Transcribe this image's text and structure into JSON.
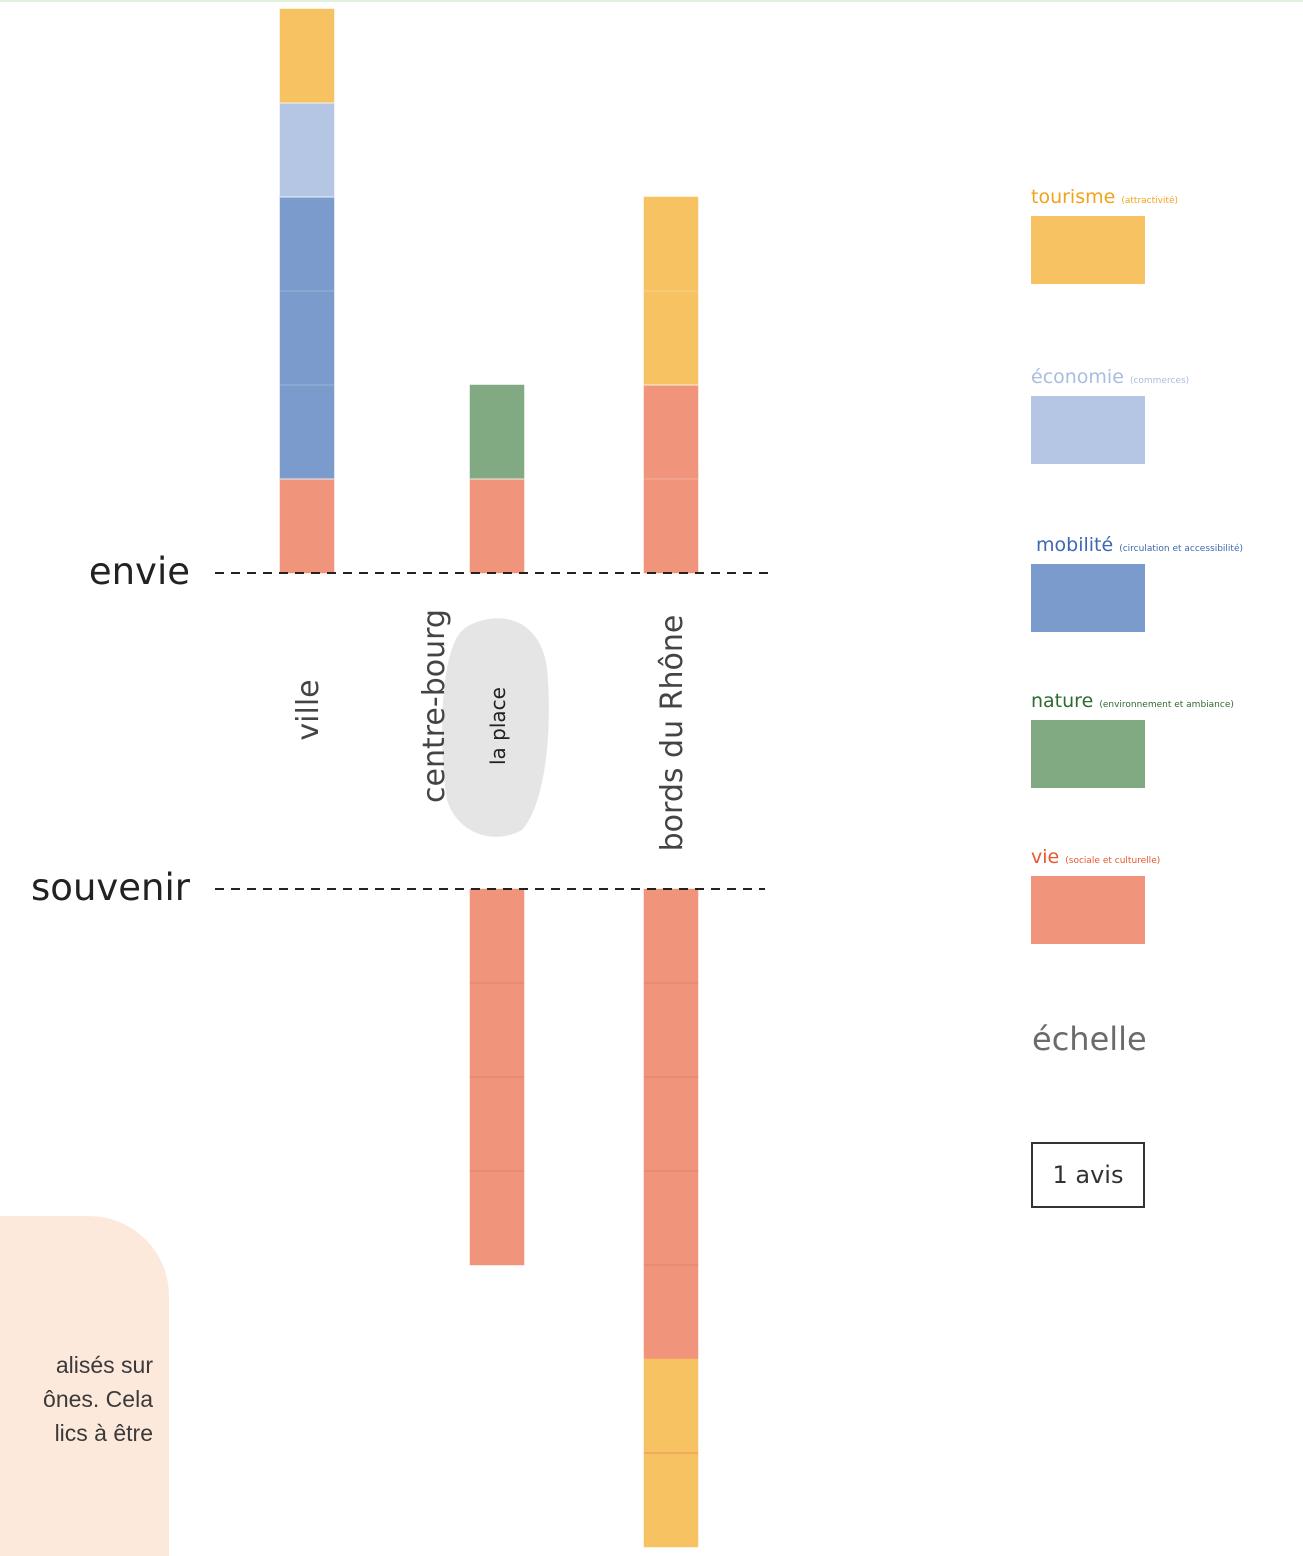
{
  "colors": {
    "tourisme": "#f7c362",
    "economie": "#b4c6e4",
    "mobilite": "#7a9bcc",
    "nature": "#82aa82",
    "vie": "#f0957c",
    "blob": "#e5e5e5",
    "axis": "#222222",
    "tourisme_text": "#f2a31c",
    "economie_text": "#a9bde0",
    "mobilite_text": "#3d69b1",
    "nature_text": "#2f6b2f",
    "vie_text": "#e8562f"
  },
  "chart_data": {
    "type": "bar",
    "title": "",
    "xlabel": "",
    "ylabel": "",
    "ylim": [
      -7,
      6
    ],
    "unit": "1 avis",
    "axes": [
      "envie",
      "souvenir"
    ],
    "categories": [
      "ville",
      "centre-bourg",
      "bords du Rhône"
    ],
    "category_note": "la place",
    "envie": [
      {
        "category": "ville",
        "stack": [
          "vie",
          "mobilite",
          "mobilite",
          "mobilite",
          "economie",
          "tourisme"
        ]
      },
      {
        "category": "centre-bourg",
        "stack": [
          "vie",
          "nature"
        ]
      },
      {
        "category": "bords du Rhône",
        "stack": [
          "vie",
          "vie",
          "tourisme",
          "tourisme"
        ]
      }
    ],
    "souvenir": [
      {
        "category": "ville",
        "stack": []
      },
      {
        "category": "centre-bourg",
        "stack": [
          "vie",
          "vie",
          "vie",
          "vie"
        ]
      },
      {
        "category": "bords du Rhône",
        "stack": [
          "vie",
          "vie",
          "vie",
          "vie",
          "vie",
          "tourisme",
          "tourisme"
        ]
      }
    ],
    "legend": [
      {
        "key": "tourisme",
        "label": "tourisme",
        "detail": "(attractivité)"
      },
      {
        "key": "economie",
        "label": "économie",
        "detail": "(commerces)"
      },
      {
        "key": "mobilite",
        "label": "mobilité",
        "detail": "(circulation et accessibilité)"
      },
      {
        "key": "nature",
        "label": "nature",
        "detail": "(environnement et ambiance)"
      },
      {
        "key": "vie",
        "label": "vie",
        "detail": "(sociale et culturelle)"
      }
    ],
    "scale_title": "échelle",
    "scale_label": "1 avis"
  },
  "note": {
    "lines": [
      "alisés sur",
      "ônes. Cela",
      "lics à être"
    ]
  }
}
